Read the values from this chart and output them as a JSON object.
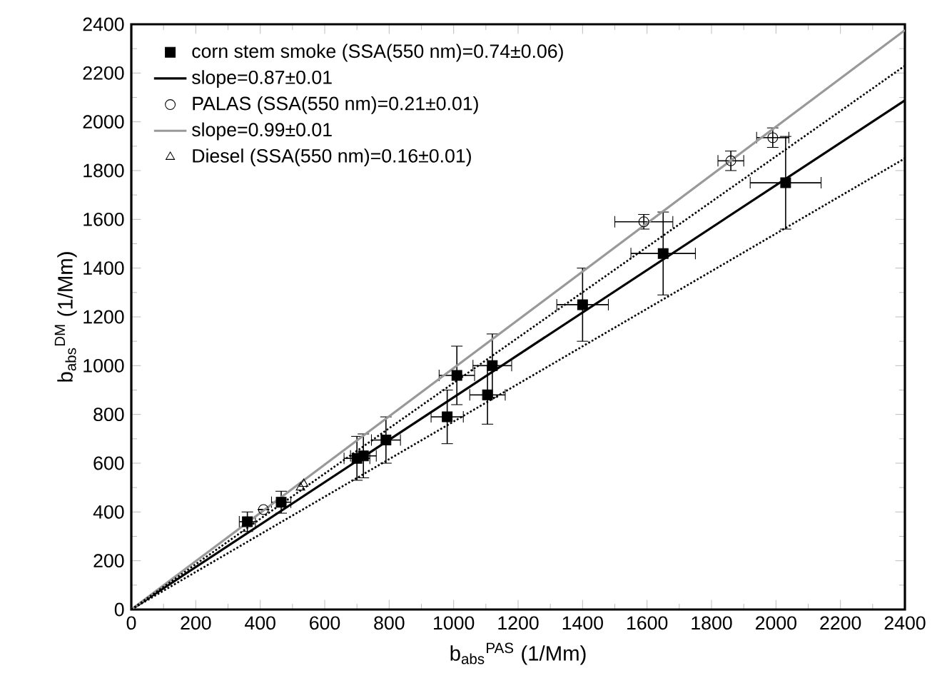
{
  "chart_data": {
    "type": "scatter",
    "xlabel": "b$_{abs}$$^{PAS}$ (1/Mm)",
    "ylabel": "b$_{abs}$$^{DM}$ (1/Mm)",
    "xlim": [
      0,
      2400
    ],
    "ylim": [
      0,
      2400
    ],
    "xticks": [
      0,
      200,
      400,
      600,
      800,
      1000,
      1200,
      1400,
      1600,
      1800,
      2000,
      2200,
      2400
    ],
    "yticks": [
      0,
      200,
      400,
      600,
      800,
      1000,
      1200,
      1400,
      1600,
      1800,
      2000,
      2200,
      2400
    ],
    "grid": false,
    "legend": "top left",
    "series": [
      {
        "name": "corn stem smoke (SSA(550 nm)=0.74±0.06)",
        "marker": "square",
        "color": "#000000",
        "x": [
          360,
          465,
          700,
          720,
          790,
          980,
          1010,
          1105,
          1120,
          1400,
          1650,
          2030
        ],
        "values": [
          360,
          440,
          620,
          630,
          695,
          790,
          960,
          880,
          1000,
          1250,
          1460,
          1750
        ],
        "errors": [
          40,
          45,
          90,
          90,
          95,
          110,
          120,
          120,
          130,
          150,
          170,
          190
        ],
        "xerrors": [
          25,
          30,
          40,
          40,
          45,
          50,
          55,
          55,
          60,
          80,
          100,
          110
        ]
      },
      {
        "name": "slope=0.87±0.01",
        "type": "line",
        "color": "#000000",
        "line_style": "solid",
        "x": [
          0,
          2400
        ],
        "values": [
          0,
          2088
        ]
      },
      {
        "name": "PALAS (SSA(550 nm)=0.21±0.01)",
        "marker": "circle",
        "color": "#000000",
        "x": [
          410,
          1590,
          1860,
          1990
        ],
        "values": [
          410,
          1590,
          1840,
          1935
        ],
        "errors": [
          null,
          30,
          40,
          40
        ],
        "xerrors": [
          null,
          90,
          40,
          50
        ]
      },
      {
        "name": "slope=0.99±0.01",
        "type": "line",
        "color": "#999999",
        "line_style": "solid",
        "x": [
          0,
          2400
        ],
        "values": [
          0,
          2376
        ]
      },
      {
        "name": "Diesel (SSA(550 nm)=0.16±0.01)",
        "marker": "triangle",
        "color": "#000000",
        "x": [
          525,
          535
        ],
        "values": [
          500,
          515
        ]
      },
      {
        "type": "line",
        "color": "#000000",
        "line_style": "dotted",
        "x": [
          0,
          2400
        ],
        "values": [
          0,
          2230
        ]
      },
      {
        "type": "line",
        "color": "#000000",
        "line_style": "dotted",
        "x": [
          0,
          2400
        ],
        "values": [
          0,
          1850
        ]
      }
    ]
  }
}
